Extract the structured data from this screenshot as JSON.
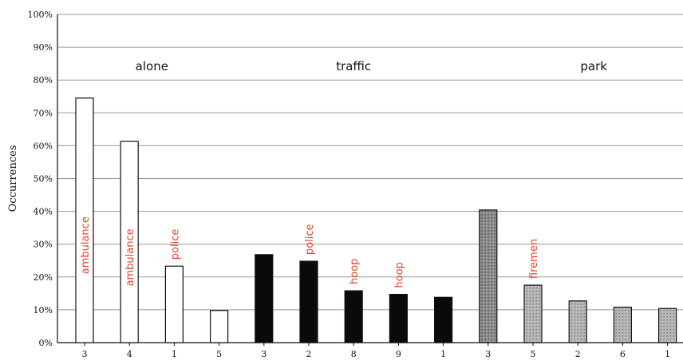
{
  "chart_data": {
    "type": "bar",
    "ylabel": "Occurrences",
    "xlabel": "",
    "ylim": [
      0,
      100
    ],
    "yticks": [
      "0%",
      "10%",
      "20%",
      "30%",
      "40%",
      "50%",
      "60%",
      "70%",
      "80%",
      "90%",
      "100%"
    ],
    "grid": true,
    "annotation_color": "#e0452b",
    "groups": [
      {
        "name": "alone",
        "style": "white",
        "categories": [
          "3",
          "4",
          "1",
          "5"
        ],
        "values": [
          74.5,
          61.3,
          23.3,
          9.8
        ],
        "annotations": [
          "ambulance",
          "ambulance",
          "police",
          ""
        ]
      },
      {
        "name": "traffic",
        "style": "black",
        "categories": [
          "3",
          "2",
          "8",
          "9",
          "1"
        ],
        "values": [
          26.8,
          24.8,
          15.8,
          14.7,
          13.8
        ],
        "annotations": [
          "",
          "police",
          "hoop",
          "hoop",
          ""
        ]
      },
      {
        "name": "park",
        "style": "gray",
        "categories": [
          "3",
          "5",
          "2",
          "6",
          "1"
        ],
        "values": [
          40.4,
          17.5,
          12.7,
          10.8,
          10.4
        ],
        "annotations": [
          "",
          "firemen",
          "",
          "",
          ""
        ]
      }
    ]
  }
}
